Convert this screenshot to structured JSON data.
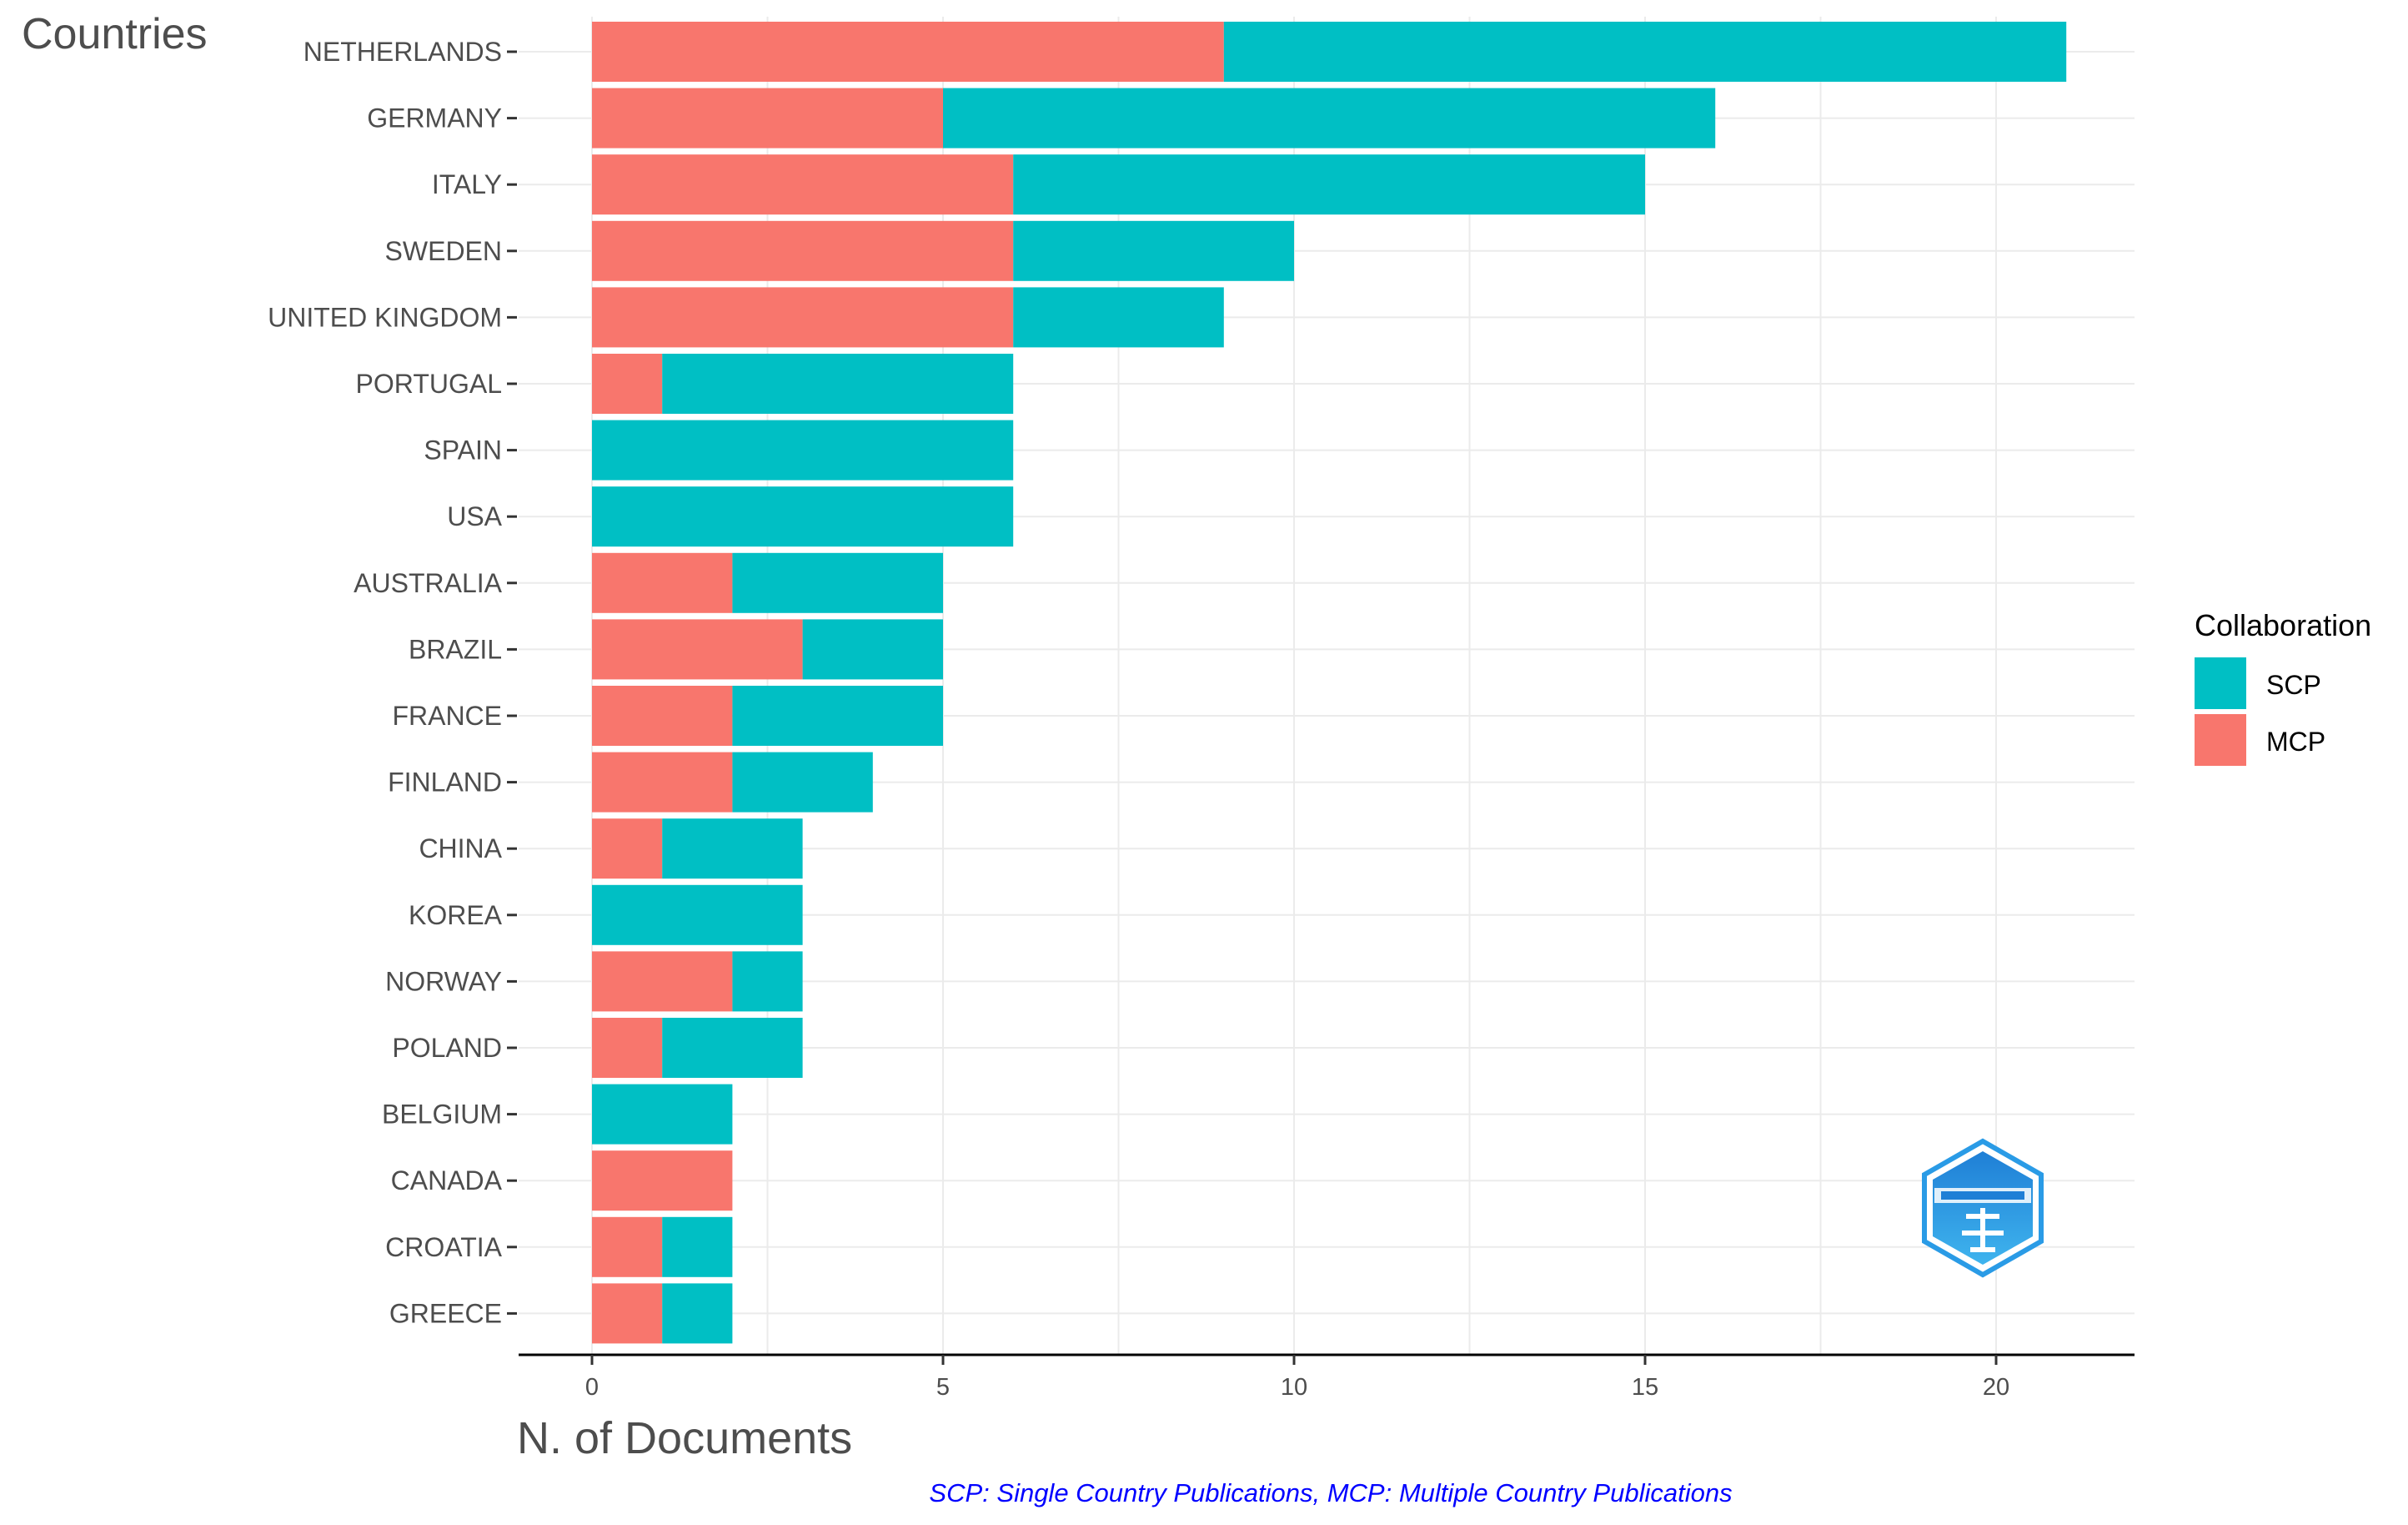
{
  "chart_data": {
    "type": "bar",
    "orientation": "horizontal",
    "stacked": true,
    "title": "",
    "ylabel": "Countries",
    "xlabel": "N. of Documents",
    "xlim": [
      0,
      22
    ],
    "xticks": [
      0,
      5,
      10,
      15,
      20
    ],
    "grid": true,
    "categories": [
      "NETHERLANDS",
      "GERMANY",
      "ITALY",
      "SWEDEN",
      "UNITED KINGDOM",
      "PORTUGAL",
      "SPAIN",
      "USA",
      "AUSTRALIA",
      "BRAZIL",
      "FRANCE",
      "FINLAND",
      "CHINA",
      "KOREA",
      "NORWAY",
      "POLAND",
      "BELGIUM",
      "CANADA",
      "CROATIA",
      "GREECE"
    ],
    "series": [
      {
        "name": "MCP",
        "color": "#F8766D",
        "values": [
          9,
          5,
          6,
          6,
          6,
          1,
          0,
          0,
          2,
          3,
          2,
          2,
          1,
          0,
          2,
          1,
          0,
          2,
          1,
          1
        ]
      },
      {
        "name": "SCP",
        "color": "#00BFC4",
        "values": [
          12,
          11,
          9,
          4,
          3,
          5,
          6,
          6,
          3,
          2,
          3,
          2,
          2,
          3,
          1,
          2,
          2,
          0,
          1,
          1
        ]
      }
    ],
    "legend": {
      "title": "Collaboration",
      "placement": "right",
      "entries": [
        {
          "label": "SCP",
          "color": "#00BFC4"
        },
        {
          "label": "MCP",
          "color": "#F8766D"
        }
      ]
    },
    "caption": "SCP: Single Country Publications, MCP: Multiple Country Publications",
    "caption_color": "#0000FF"
  }
}
